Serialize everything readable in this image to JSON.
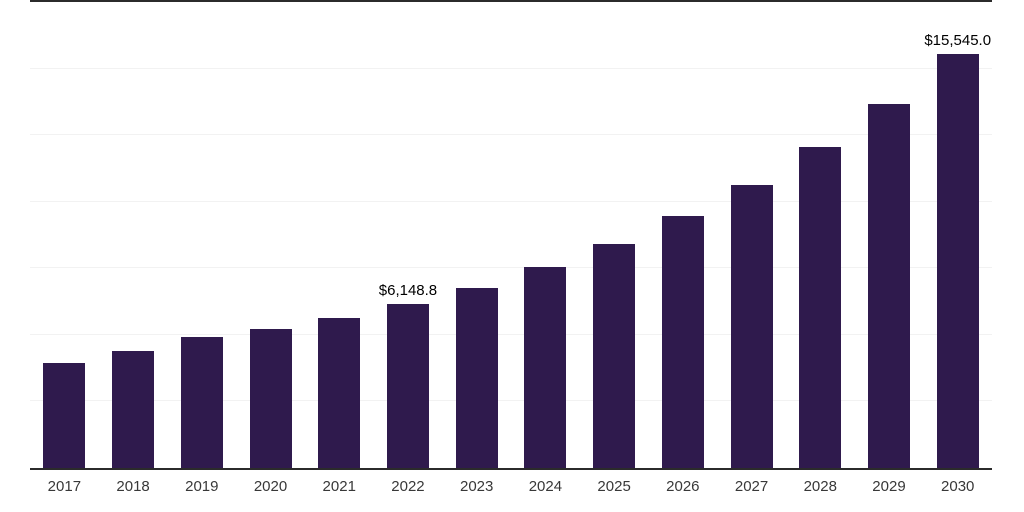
{
  "chart_data": {
    "type": "bar",
    "title": "",
    "xlabel": "",
    "ylabel": "",
    "categories": [
      "2017",
      "2018",
      "2019",
      "2020",
      "2021",
      "2022",
      "2023",
      "2024",
      "2025",
      "2026",
      "2027",
      "2028",
      "2029",
      "2030"
    ],
    "values": [
      3960,
      4410,
      4930,
      5230,
      5640,
      6148.8,
      6770,
      7560,
      8410,
      9460,
      10620,
      12040,
      13680,
      15545
    ],
    "data_labels": {
      "2022": "$6,148.8",
      "2030": "$15,545.0"
    },
    "ylim": [
      0,
      17500
    ],
    "gridline_values": [
      2500,
      5000,
      7500,
      10000,
      12500,
      15000
    ],
    "grid": "horizontal-light",
    "legend": "none",
    "colors": {
      "bar": "#2f1a4d",
      "axis_line": "#2b2b2b",
      "gridline": "#f2f2f2",
      "value_label": "#000000",
      "tick_label": "#383838",
      "background": "#ffffff"
    }
  }
}
